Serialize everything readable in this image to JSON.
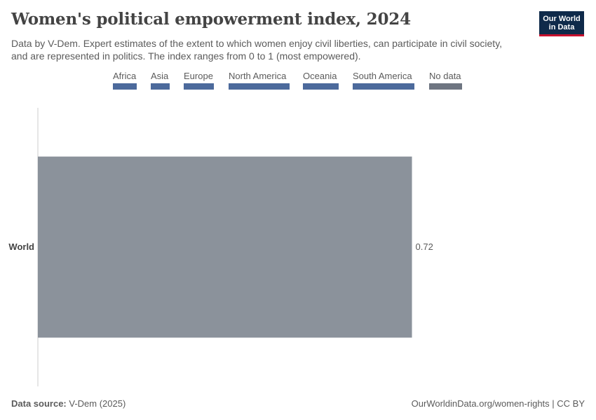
{
  "header": {
    "title": "Women's political empowerment index, 2024",
    "subtitle": "Data by V-Dem. Expert estimates of the extent to which women enjoy civil liberties, can participate in civil society, and are represented in politics. The index ranges from 0 to 1 (most empowered).",
    "logo_line1": "Our World",
    "logo_line2": "in Data"
  },
  "legend": [
    {
      "label": "Africa",
      "color": "#4c6a9c"
    },
    {
      "label": "Asia",
      "color": "#4c6a9c"
    },
    {
      "label": "Europe",
      "color": "#4c6a9c"
    },
    {
      "label": "North America",
      "color": "#4c6a9c"
    },
    {
      "label": "Oceania",
      "color": "#4c6a9c"
    },
    {
      "label": "South America",
      "color": "#4c6a9c"
    },
    {
      "label": "No data",
      "color": "#6e7581"
    }
  ],
  "chart_data": {
    "type": "bar",
    "orientation": "horizontal",
    "categories": [
      "World"
    ],
    "values": [
      0.72
    ],
    "value_labels": [
      "0.72"
    ],
    "bar_color": "#8b929b",
    "xlim": [
      0,
      1
    ]
  },
  "footer": {
    "source_label": "Data source:",
    "source_value": "V-Dem (2025)",
    "url": "OurWorldinData.org/women-rights | CC BY"
  }
}
